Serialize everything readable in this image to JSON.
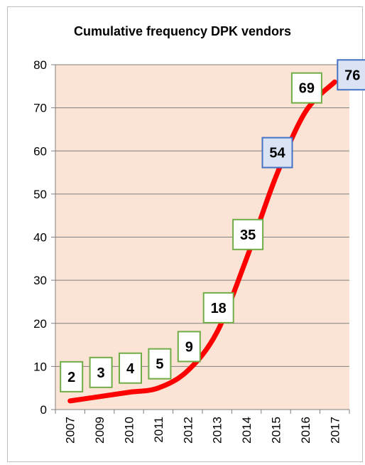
{
  "chart_data": {
    "type": "line",
    "title": "Cumulative frequency DPK vendors",
    "xlabel": "",
    "ylabel": "",
    "categories": [
      "2007",
      "2009",
      "2010",
      "2011",
      "2012",
      "2013",
      "2014",
      "2015",
      "2016",
      "2017"
    ],
    "values": [
      2,
      3,
      4,
      5,
      9,
      18,
      35,
      54,
      69,
      76
    ],
    "point_labels": [
      "2",
      "3",
      "4",
      "5",
      "9",
      "18",
      "35",
      "54",
      "69",
      "76"
    ],
    "ylim": [
      0,
      80
    ],
    "yticks": [
      "0",
      "10",
      "20",
      "30",
      "40",
      "50",
      "60",
      "70",
      "80"
    ],
    "grid": true,
    "legend": "none",
    "colors": {
      "line": "#ff0000",
      "plot_background": "#fbe4d5",
      "gridline": "#7f7f7f",
      "label_green_border": "#70ad47",
      "label_blue_border": "#4472c4",
      "label_blue_fill": "#dae3f3",
      "label_white_fill": "#ffffff"
    },
    "label_styles": [
      "green",
      "green",
      "green",
      "green",
      "green",
      "green",
      "green",
      "blue",
      "green",
      "blue"
    ]
  }
}
